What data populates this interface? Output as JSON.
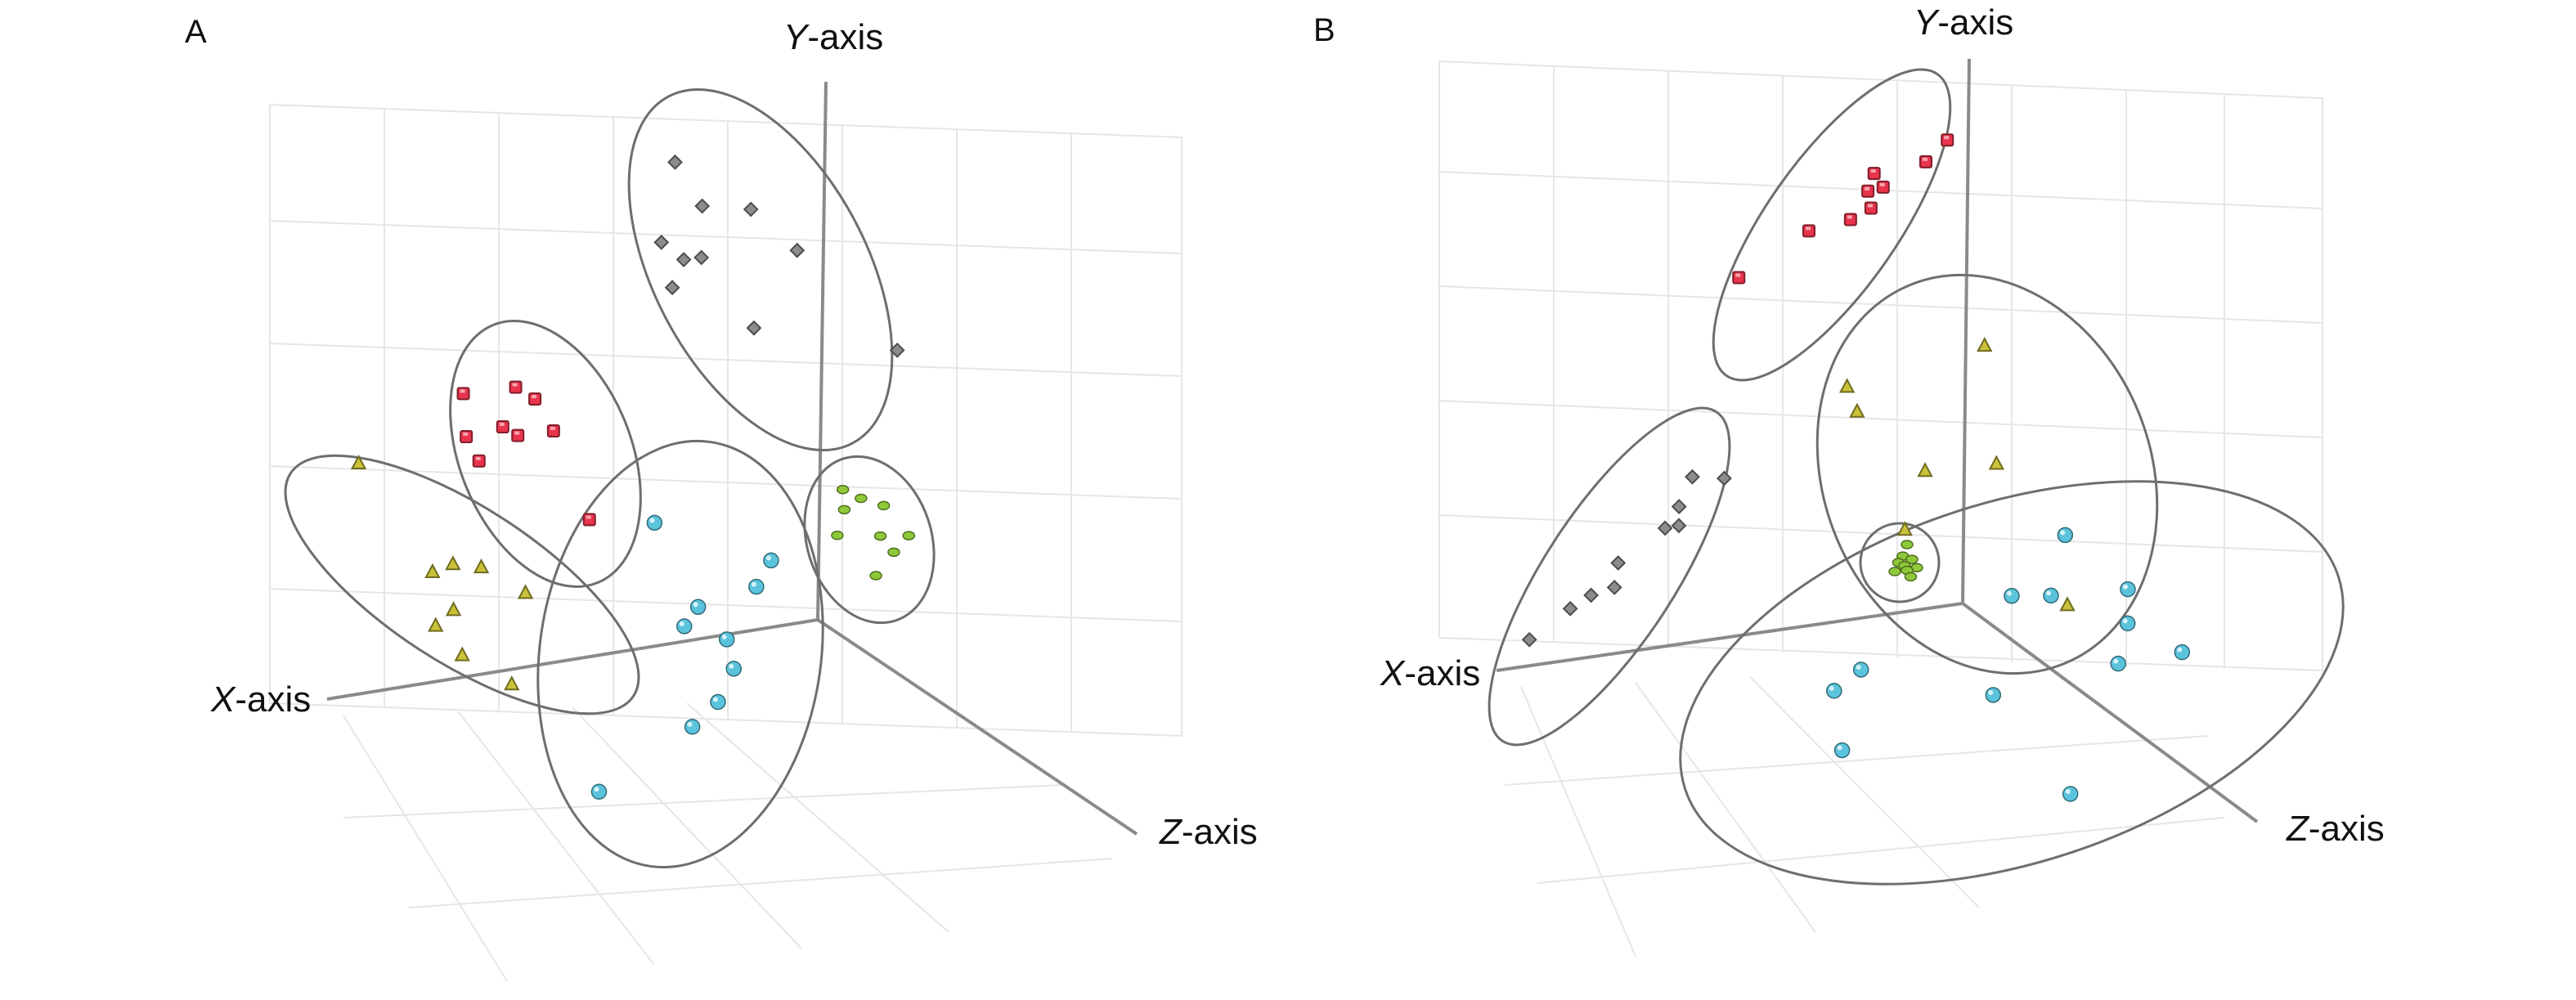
{
  "figure": {
    "panels": [
      {
        "label": "A",
        "axes": {
          "x": [
            "X",
            "-axis"
          ],
          "y": [
            "Y",
            "-axis"
          ],
          "z": [
            "Z",
            "-axis"
          ]
        },
        "series": [
          {
            "marker": "diamond",
            "color": "#8c8c8c",
            "points": [
              [
                0.35,
                0.92
              ],
              [
                0.05,
                0.72
              ],
              [
                0.37,
                0.76
              ],
              [
                0.62,
                0.68
              ],
              [
                0.12,
                0.64
              ],
              [
                -0.02,
                0.58
              ],
              [
                0.22,
                0.62
              ],
              [
                0.75,
                0.5
              ],
              [
                0.3,
                0.35
              ],
              [
                1.0,
                0.08
              ]
            ]
          },
          {
            "marker": "square",
            "color": "#e8344c",
            "points": [
              [
                0.1,
                0.88
              ],
              [
                0.48,
                0.82
              ],
              [
                0.58,
                0.74
              ],
              [
                0.28,
                0.68
              ],
              [
                0.0,
                0.7
              ],
              [
                0.36,
                0.62
              ],
              [
                0.62,
                0.58
              ],
              [
                0.02,
                0.58
              ],
              [
                0.62,
                0.16
              ]
            ]
          },
          {
            "marker": "triangle",
            "color": "#c9c23a",
            "points": [
              [
                0.02,
                0.86
              ],
              [
                0.68,
                0.72
              ],
              [
                0.52,
                0.7
              ],
              [
                0.44,
                0.6
              ],
              [
                0.4,
                0.46
              ],
              [
                0.52,
                0.3
              ],
              [
                0.5,
                0.12
              ],
              [
                0.8,
                0.06
              ],
              [
                0.62,
                0.04
              ]
            ]
          },
          {
            "marker": "sphere",
            "color": "#5bc3dc",
            "points": [
              [
                0.3,
                0.86
              ],
              [
                0.85,
                0.8
              ],
              [
                0.8,
                0.72
              ],
              [
                0.55,
                0.64
              ],
              [
                0.5,
                0.58
              ],
              [
                0.7,
                0.56
              ],
              [
                0.75,
                0.48
              ],
              [
                0.7,
                0.38
              ],
              [
                0.6,
                0.3
              ],
              [
                0.22,
                0.08
              ]
            ]
          },
          {
            "marker": "ellipsoid",
            "color": "#8fc93a",
            "points": [
              [
                0.4,
                0.9
              ],
              [
                0.55,
                0.8
              ],
              [
                0.35,
                0.76
              ],
              [
                0.75,
                0.7
              ],
              [
                0.2,
                0.6
              ],
              [
                0.62,
                0.5
              ],
              [
                0.9,
                0.44
              ],
              [
                0.7,
                0.36
              ],
              [
                0.45,
                0.24
              ]
            ]
          }
        ]
      },
      {
        "label": "B",
        "axes": {
          "x": [
            "X",
            "-axis"
          ],
          "y": [
            "Y",
            "-axis"
          ],
          "z": [
            "Z",
            "-axis"
          ]
        },
        "series": [
          {
            "marker": "square",
            "color": "#e8344c",
            "points": [
              [
                0.95,
                0.95
              ],
              [
                0.9,
                0.85
              ],
              [
                0.55,
                0.72
              ],
              [
                0.7,
                0.7
              ],
              [
                0.6,
                0.66
              ],
              [
                0.72,
                0.62
              ],
              [
                0.62,
                0.55
              ],
              [
                0.35,
                0.44
              ],
              [
                0.05,
                0.18
              ]
            ]
          },
          {
            "marker": "triangle",
            "color": "#c9c23a",
            "points": [
              [
                0.12,
                0.9
              ],
              [
                0.68,
                0.86
              ],
              [
                0.12,
                0.82
              ],
              [
                0.28,
                0.58
              ],
              [
                0.55,
                0.52
              ],
              [
                0.12,
                0.44
              ],
              [
                0.6,
                0.05
              ]
            ]
          },
          {
            "marker": "diamond",
            "color": "#8c8c8c",
            "points": [
              [
                0.92,
                0.95
              ],
              [
                0.65,
                0.9
              ],
              [
                0.7,
                0.8
              ],
              [
                0.8,
                0.75
              ],
              [
                0.7,
                0.72
              ],
              [
                0.5,
                0.55
              ],
              [
                0.6,
                0.48
              ],
              [
                0.45,
                0.42
              ],
              [
                0.35,
                0.35
              ],
              [
                0.18,
                0.2
              ]
            ]
          },
          {
            "marker": "ellipsoid",
            "color": "#8fc93a",
            "points": [
              [
                0.62,
                0.78
              ],
              [
                0.55,
                0.6
              ],
              [
                0.7,
                0.55
              ],
              [
                0.48,
                0.5
              ],
              [
                0.58,
                0.45
              ],
              [
                0.78,
                0.42
              ],
              [
                0.62,
                0.38
              ],
              [
                0.42,
                0.36
              ],
              [
                0.68,
                0.28
              ]
            ]
          },
          {
            "marker": "sphere",
            "color": "#5bc3dc",
            "points": [
              [
                0.68,
                0.92
              ],
              [
                0.62,
                0.74
              ],
              [
                0.76,
                0.68
              ],
              [
                0.55,
                0.78
              ],
              [
                0.74,
                0.57
              ],
              [
                0.18,
                0.66
              ],
              [
                0.24,
                0.7
              ],
              [
                0.7,
                0.45
              ],
              [
                0.16,
                0.46
              ],
              [
                0.46,
                0.48
              ],
              [
                0.82,
                0.42
              ],
              [
                0.54,
                0.08
              ]
            ]
          }
        ]
      }
    ]
  }
}
